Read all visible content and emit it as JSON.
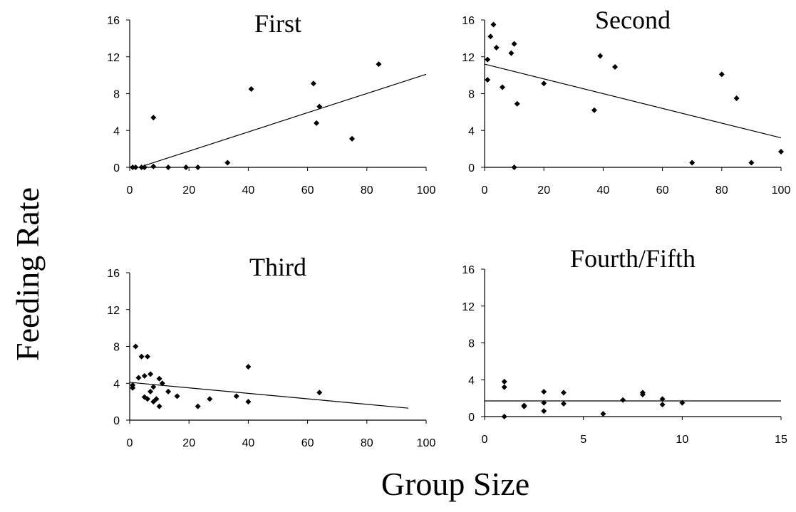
{
  "ylabel": "Feeding Rate",
  "xlabel": "Group Size",
  "chart_data": [
    {
      "type": "scatter",
      "title": "First",
      "xlim": [
        0,
        100
      ],
      "ylim": [
        0,
        16
      ],
      "xticks": [
        0,
        20,
        40,
        60,
        80,
        100
      ],
      "yticks": [
        0,
        4,
        8,
        12,
        16
      ],
      "points": [
        [
          1,
          0
        ],
        [
          2,
          0
        ],
        [
          4,
          0
        ],
        [
          5,
          0
        ],
        [
          8,
          0.1
        ],
        [
          8,
          5.4
        ],
        [
          13,
          0
        ],
        [
          19,
          0
        ],
        [
          23,
          0
        ],
        [
          33,
          0.5
        ],
        [
          41,
          8.5
        ],
        [
          62,
          9.1
        ],
        [
          63,
          4.8
        ],
        [
          64,
          6.6
        ],
        [
          75,
          3.1
        ],
        [
          84,
          11.2
        ]
      ],
      "trendline": [
        [
          5,
          0.2
        ],
        [
          100,
          10.1
        ]
      ]
    },
    {
      "type": "scatter",
      "title": "Second",
      "xlim": [
        0,
        100
      ],
      "ylim": [
        0,
        16
      ],
      "xticks": [
        0,
        20,
        40,
        60,
        80,
        100
      ],
      "yticks": [
        0,
        4,
        8,
        12,
        16
      ],
      "points": [
        [
          1,
          11.7
        ],
        [
          1,
          9.5
        ],
        [
          2,
          14.2
        ],
        [
          3,
          15.5
        ],
        [
          4,
          13
        ],
        [
          6,
          8.7
        ],
        [
          9,
          12.4
        ],
        [
          10,
          13.4
        ],
        [
          10,
          0
        ],
        [
          11,
          6.9
        ],
        [
          20,
          9.1
        ],
        [
          37,
          6.2
        ],
        [
          39,
          12.1
        ],
        [
          44,
          10.9
        ],
        [
          70,
          0.5
        ],
        [
          80,
          10.1
        ],
        [
          85,
          7.5
        ],
        [
          90,
          0.5
        ],
        [
          100,
          1.7
        ]
      ],
      "trendline": [
        [
          0,
          11.2
        ],
        [
          100,
          3.2
        ]
      ]
    },
    {
      "type": "scatter",
      "title": "Third",
      "xlim": [
        0,
        100
      ],
      "ylim": [
        0,
        16
      ],
      "xticks": [
        0,
        20,
        40,
        60,
        80,
        100
      ],
      "yticks": [
        0,
        4,
        8,
        12,
        16
      ],
      "points": [
        [
          1,
          3.5
        ],
        [
          1,
          3.8
        ],
        [
          2,
          8
        ],
        [
          3,
          4.6
        ],
        [
          4,
          6.9
        ],
        [
          5,
          2.5
        ],
        [
          5,
          4.8
        ],
        [
          6,
          6.9
        ],
        [
          6,
          2.3
        ],
        [
          7,
          5
        ],
        [
          7,
          3.1
        ],
        [
          8,
          2
        ],
        [
          8,
          3.6
        ],
        [
          9,
          2.3
        ],
        [
          10,
          1.5
        ],
        [
          10,
          4.5
        ],
        [
          11,
          4
        ],
        [
          13,
          3.1
        ],
        [
          16,
          2.6
        ],
        [
          23,
          1.5
        ],
        [
          27,
          2.3
        ],
        [
          36,
          2.6
        ],
        [
          40,
          2
        ],
        [
          40,
          5.8
        ],
        [
          64,
          3
        ]
      ],
      "trendline": [
        [
          0,
          4.1
        ],
        [
          94,
          1.3
        ]
      ]
    },
    {
      "type": "scatter",
      "title": "Fourth/Fifth",
      "xlim": [
        0,
        15
      ],
      "ylim": [
        0,
        16
      ],
      "xticks": [
        0,
        5,
        10,
        15
      ],
      "yticks": [
        0,
        4,
        8,
        12,
        16
      ],
      "points": [
        [
          1,
          3.8
        ],
        [
          1,
          3.2
        ],
        [
          1,
          0
        ],
        [
          2,
          1.2
        ],
        [
          2,
          1.1
        ],
        [
          3,
          2.7
        ],
        [
          3,
          1.5
        ],
        [
          3,
          0.6
        ],
        [
          4,
          2.6
        ],
        [
          4,
          1.4
        ],
        [
          6,
          0.3
        ],
        [
          7,
          1.8
        ],
        [
          8,
          2.6
        ],
        [
          8,
          2.4
        ],
        [
          9,
          1.9
        ],
        [
          9,
          1.3
        ],
        [
          10,
          1.5
        ]
      ],
      "trendline": [
        [
          0,
          1.7
        ],
        [
          15,
          1.7
        ]
      ]
    }
  ]
}
